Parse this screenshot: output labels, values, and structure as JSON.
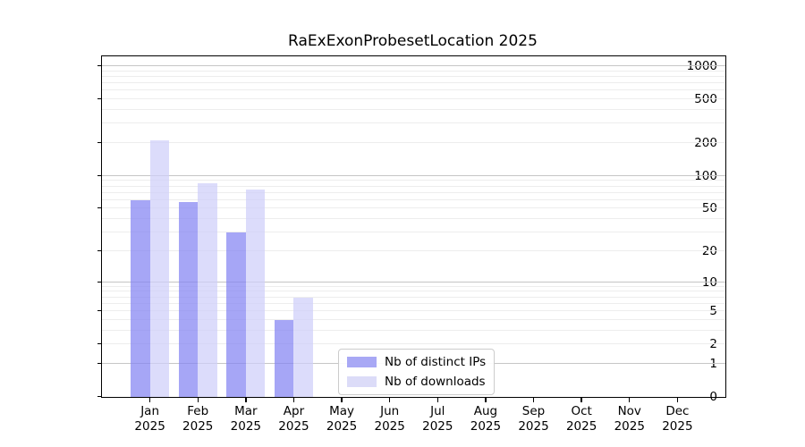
{
  "chart_data": {
    "type": "bar",
    "title": "RaExExonProbesetLocation 2025",
    "year": "2025",
    "categories": [
      "Jan",
      "Feb",
      "Mar",
      "Apr",
      "May",
      "Jun",
      "Jul",
      "Aug",
      "Sep",
      "Oct",
      "Nov",
      "Dec"
    ],
    "series": [
      {
        "name": "Nb of distinct IPs",
        "values": [
          60,
          58,
          30,
          4,
          null,
          null,
          null,
          null,
          null,
          null,
          null,
          null
        ],
        "color": "#a8a8f5",
        "bar_fill": "rgba(132,132,242,0.72)"
      },
      {
        "name": "Nb of downloads",
        "values": [
          210,
          85,
          75,
          7,
          null,
          null,
          null,
          null,
          null,
          null,
          null,
          null
        ],
        "color": "#dcdcf8",
        "bar_fill": "rgba(207,207,250,0.72)"
      }
    ],
    "yticks": [
      0,
      1,
      2,
      5,
      10,
      20,
      50,
      100,
      200,
      500,
      1000
    ],
    "gridlines_major": [
      1,
      10,
      100,
      1000
    ],
    "gridlines_minor": [
      2,
      3,
      4,
      5,
      6,
      7,
      8,
      9,
      20,
      30,
      40,
      50,
      60,
      70,
      80,
      90,
      200,
      300,
      400,
      500,
      600,
      700,
      800,
      900
    ],
    "scale": "log10(value+1)",
    "scale_max_exp": 3.09,
    "ylim": [
      0,
      1230
    ],
    "grid": "on",
    "legend_position": "lower-center",
    "axis_color": "#000000",
    "grid_major_color": "#c6c6c6",
    "grid_minor_color": "#ededed"
  }
}
